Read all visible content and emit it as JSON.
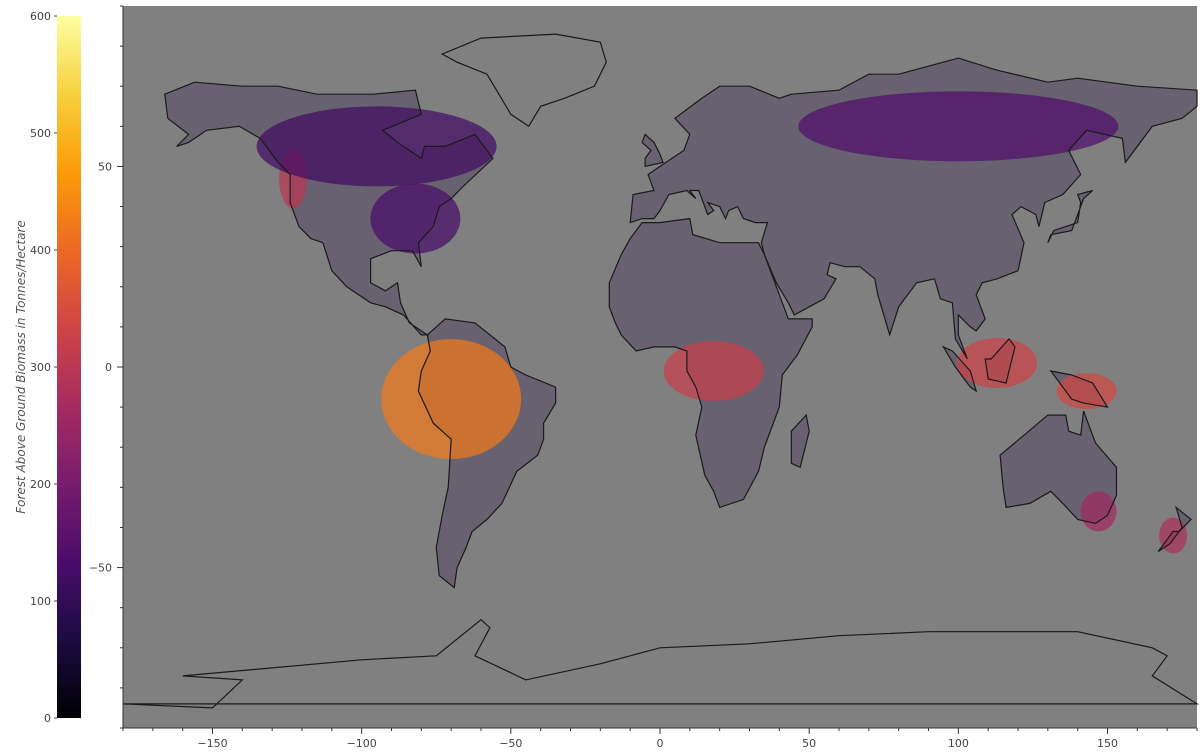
{
  "colorbar": {
    "title": "Forest Above Ground Biomass in Tonnes/Hectare",
    "min": 0,
    "max": 600,
    "ticks": [
      0,
      100,
      200,
      300,
      400,
      500,
      600
    ],
    "tick_labels": [
      "0",
      "100",
      "200",
      "300",
      "400",
      "500",
      "600"
    ],
    "stops": [
      "#000004",
      "#1b0c41",
      "#4a0c6b",
      "#781c6d",
      "#a52c60",
      "#cf4446",
      "#ed6925",
      "#fb9b06",
      "#f7d13d",
      "#fcffa4"
    ]
  },
  "map": {
    "background_color": "#808080",
    "x_range": [
      -180,
      180
    ],
    "y_range": [
      -90,
      90
    ],
    "x_ticks": [
      -150,
      -100,
      -50,
      0,
      50,
      100,
      150
    ],
    "x_tick_labels": [
      "−150",
      "−100",
      "−50",
      "0",
      "50",
      "100",
      "150"
    ],
    "y_ticks": [
      -50,
      0,
      50
    ],
    "y_tick_labels": [
      "−50",
      "0",
      "50"
    ],
    "coastline_color": "#1a1a1a"
  },
  "chart_data": {
    "type": "heatmap",
    "title": "",
    "xlabel": "",
    "ylabel": "",
    "xlim": [
      -180,
      180
    ],
    "ylim": [
      -90,
      90
    ],
    "colorbar_label": "Forest Above Ground Biomass in Tonnes/Hectare",
    "colorbar_range": [
      0,
      600
    ],
    "colormap": "inferno",
    "hotspots": [
      {
        "region": "Amazon basin",
        "lon": -70,
        "lat": -8,
        "value": 420
      },
      {
        "region": "Congo basin",
        "lon": 18,
        "lat": -1,
        "value": 320
      },
      {
        "region": "Borneo / Sumatra",
        "lon": 113,
        "lat": 1,
        "value": 330
      },
      {
        "region": "New Guinea",
        "lon": 143,
        "lat": -6,
        "value": 340
      },
      {
        "region": "Pacific Northwest",
        "lon": -123,
        "lat": 47,
        "value": 300
      },
      {
        "region": "Boreal Canada",
        "lon": -95,
        "lat": 55,
        "value": 120
      },
      {
        "region": "Siberian taiga",
        "lon": 100,
        "lat": 60,
        "value": 140
      },
      {
        "region": "Eastern USA",
        "lon": -82,
        "lat": 37,
        "value": 130
      },
      {
        "region": "Southeast Australia",
        "lon": 147,
        "lat": -36,
        "value": 260
      },
      {
        "region": "New Zealand",
        "lon": 172,
        "lat": -42,
        "value": 280
      }
    ]
  }
}
